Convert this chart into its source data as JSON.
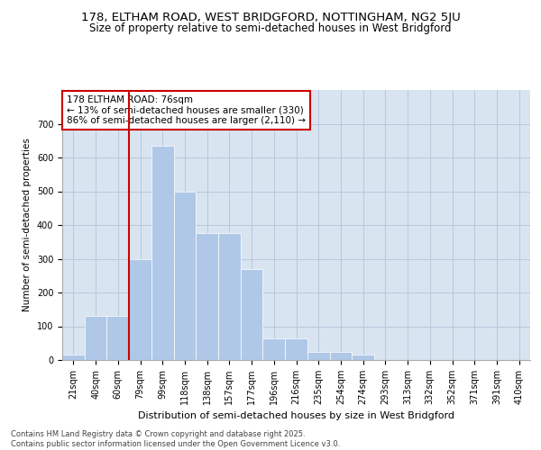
{
  "title1": "178, ELTHAM ROAD, WEST BRIDGFORD, NOTTINGHAM, NG2 5JU",
  "title2": "Size of property relative to semi-detached houses in West Bridgford",
  "xlabel": "Distribution of semi-detached houses by size in West Bridgford",
  "ylabel": "Number of semi-detached properties",
  "categories": [
    "21sqm",
    "40sqm",
    "60sqm",
    "79sqm",
    "99sqm",
    "118sqm",
    "138sqm",
    "157sqm",
    "177sqm",
    "196sqm",
    "216sqm",
    "235sqm",
    "254sqm",
    "274sqm",
    "293sqm",
    "313sqm",
    "332sqm",
    "352sqm",
    "371sqm",
    "391sqm",
    "410sqm"
  ],
  "values": [
    15,
    130,
    130,
    300,
    635,
    500,
    375,
    375,
    270,
    65,
    65,
    25,
    25,
    15,
    0,
    0,
    0,
    0,
    0,
    0,
    0
  ],
  "bar_color": "#afc8e8",
  "bar_edge_color": "#afc8e8",
  "grid_color": "#b8c8dc",
  "bg_color": "#d8e4f0",
  "vline_color": "#cc0000",
  "annotation_text": "178 ELTHAM ROAD: 76sqm\n← 13% of semi-detached houses are smaller (330)\n86% of semi-detached houses are larger (2,110) →",
  "annotation_box_color": "#ffffff",
  "annotation_box_edge": "#cc0000",
  "ylim": [
    0,
    800
  ],
  "yticks": [
    0,
    100,
    200,
    300,
    400,
    500,
    600,
    700
  ],
  "footer": "Contains HM Land Registry data © Crown copyright and database right 2025.\nContains public sector information licensed under the Open Government Licence v3.0.",
  "title1_fontsize": 9.5,
  "title2_fontsize": 8.5,
  "tick_fontsize": 7,
  "label_fontsize": 8,
  "ylabel_fontsize": 7.5,
  "footer_fontsize": 6,
  "ann_fontsize": 7.5
}
